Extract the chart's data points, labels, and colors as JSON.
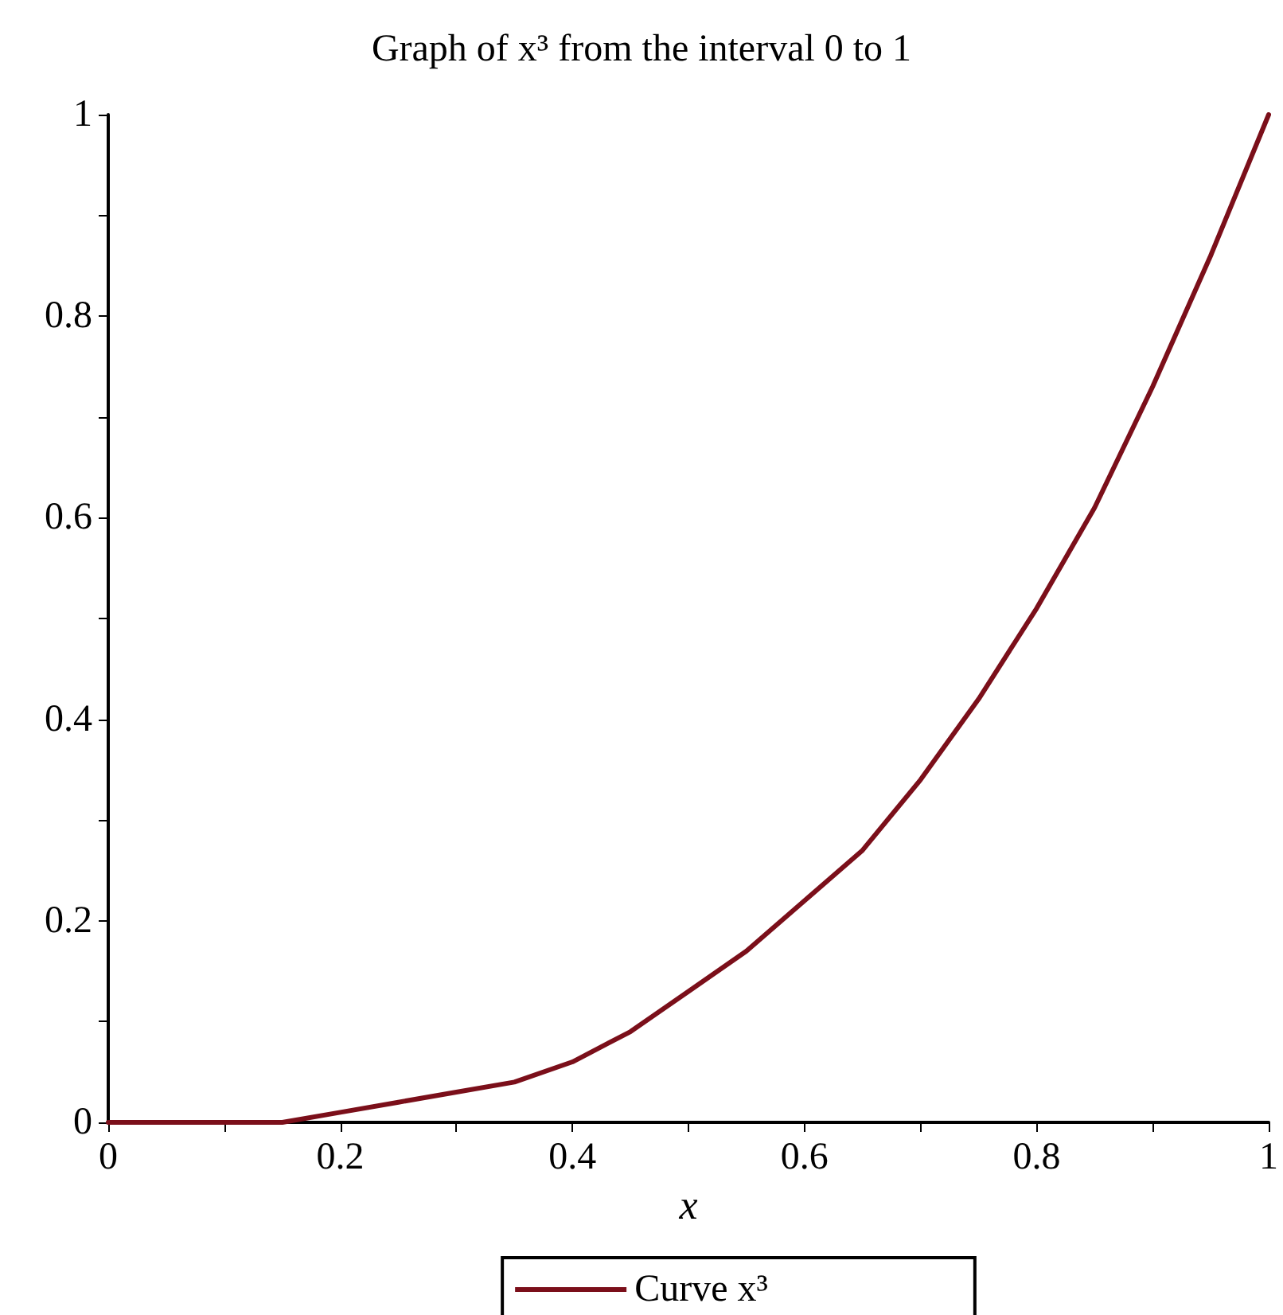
{
  "chart_data": {
    "type": "line",
    "title": "Graph of x³ from the interval 0 to 1",
    "xlabel": "x",
    "x": [
      0,
      0.05,
      0.1,
      0.15,
      0.2,
      0.25,
      0.3,
      0.35,
      0.4,
      0.45,
      0.5,
      0.55,
      0.6,
      0.65,
      0.7,
      0.75,
      0.8,
      0.85,
      0.9,
      0.95,
      1
    ],
    "series": [
      {
        "name": "Curve x³",
        "color": "#7b0f1a",
        "values": [
          0,
          0,
          0,
          0,
          0.01,
          0.02,
          0.03,
          0.04,
          0.06,
          0.09,
          0.13,
          0.17,
          0.22,
          0.27,
          0.34,
          0.42,
          0.51,
          0.61,
          0.73,
          0.86,
          1
        ]
      }
    ],
    "xlim": [
      0,
      1
    ],
    "ylim": [
      0,
      1
    ],
    "xticks": [
      0,
      {
        "value": 0.1,
        "label": null
      },
      0.2,
      {
        "value": 0.3,
        "label": null
      },
      0.4,
      {
        "value": 0.5,
        "label": null
      },
      0.6,
      {
        "value": 0.7,
        "label": null
      },
      0.8,
      {
        "value": 0.9,
        "label": null
      },
      1
    ],
    "yticks": [
      0,
      {
        "value": 0.1,
        "label": null
      },
      0.2,
      {
        "value": 0.3,
        "label": null
      },
      0.4,
      {
        "value": 0.5,
        "label": null
      },
      0.6,
      {
        "value": 0.7,
        "label": null
      },
      0.8,
      {
        "value": 0.9,
        "label": null
      },
      1
    ],
    "grid": false,
    "legend": "bottom",
    "marker": "none",
    "line_style": "solid"
  }
}
